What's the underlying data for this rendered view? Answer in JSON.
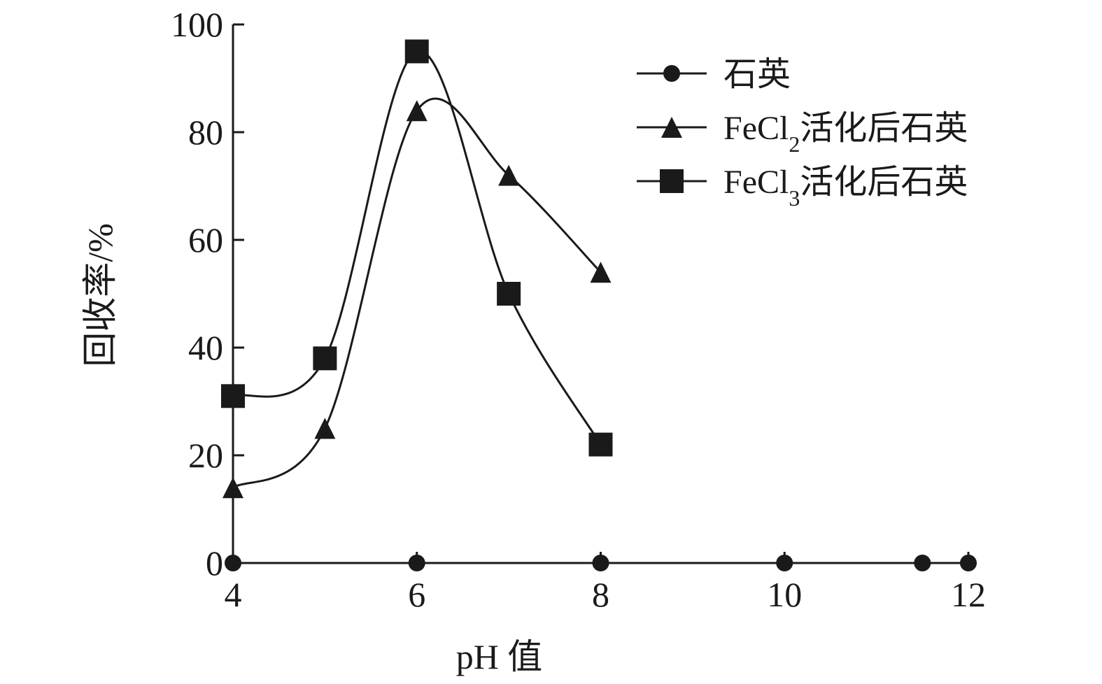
{
  "chart_data": {
    "type": "line",
    "title": "",
    "xlabel": "pH 值",
    "ylabel": "回收率/%",
    "xlim": [
      4,
      12
    ],
    "ylim": [
      0,
      100
    ],
    "xticks": [
      4,
      6,
      8,
      10,
      12
    ],
    "yticks": [
      0,
      20,
      40,
      60,
      80,
      100
    ],
    "grid": false,
    "legend_position": "top-right",
    "series": [
      {
        "name": "石英",
        "marker": "circle",
        "smooth": true,
        "x": [
          4,
          6,
          8,
          10,
          11.5,
          12
        ],
        "y": [
          0,
          0,
          0,
          0,
          0,
          0
        ]
      },
      {
        "name": "FeCl2活化后石英",
        "name_parts": {
          "pre": "FeCl",
          "sub": "2",
          "post": "活化后石英"
        },
        "marker": "triangle",
        "smooth": true,
        "x": [
          4,
          5,
          6,
          7,
          8
        ],
        "y": [
          14,
          25,
          84,
          72,
          54
        ]
      },
      {
        "name": "FeCl3活化后石英",
        "name_parts": {
          "pre": "FeCl",
          "sub": "3",
          "post": "活化后石英"
        },
        "marker": "square",
        "smooth": true,
        "x": [
          4,
          5,
          6,
          7,
          8
        ],
        "y": [
          31,
          38,
          95,
          50,
          22
        ]
      }
    ]
  }
}
